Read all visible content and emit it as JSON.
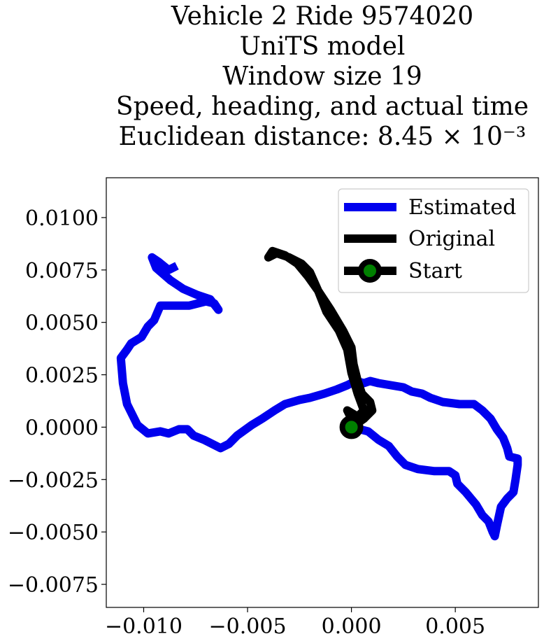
{
  "chart_data": {
    "type": "line",
    "title_lines": [
      "Vehicle 2 Ride 9574020",
      "UniTS model",
      "Window size 19",
      "Speed, heading, and actual time",
      "Euclidean distance: 8.45 × 10⁻³"
    ],
    "xlabel": "",
    "ylabel": "",
    "xlim": [
      -0.0118,
      0.009
    ],
    "ylim": [
      -0.0086,
      0.0119
    ],
    "x_ticks": [
      -0.01,
      -0.005,
      0.0,
      0.005
    ],
    "x_tick_labels": [
      "−0.010",
      "−0.005",
      "0.000",
      "0.005"
    ],
    "y_ticks": [
      0.01,
      0.0075,
      0.005,
      0.0025,
      0.0,
      -0.0025,
      -0.005,
      -0.0075
    ],
    "y_tick_labels": [
      "0.0100",
      "0.0075",
      "0.0050",
      "0.0025",
      "0.0000",
      "−0.0025",
      "−0.0050",
      "−0.0075"
    ],
    "grid": false,
    "legend_position": "top-right",
    "series": [
      {
        "name": "Estimated",
        "color": "#0000ee",
        "points": [
          [
            0.0,
            0.0
          ],
          [
            0.0008,
            -0.0002
          ],
          [
            0.0013,
            -0.0006
          ],
          [
            0.0018,
            -0.0009
          ],
          [
            0.0022,
            -0.0014
          ],
          [
            0.0026,
            -0.0018
          ],
          [
            0.0032,
            -0.002
          ],
          [
            0.004,
            -0.0021
          ],
          [
            0.0047,
            -0.0021
          ],
          [
            0.005,
            -0.0023
          ],
          [
            0.0051,
            -0.0027
          ],
          [
            0.0055,
            -0.0031
          ],
          [
            0.006,
            -0.0037
          ],
          [
            0.0063,
            -0.0042
          ],
          [
            0.0066,
            -0.0045
          ],
          [
            0.0068,
            -0.005
          ],
          [
            0.0069,
            -0.0052
          ],
          [
            0.007,
            -0.0047
          ],
          [
            0.0072,
            -0.0038
          ],
          [
            0.0075,
            -0.0034
          ],
          [
            0.0078,
            -0.0031
          ],
          [
            0.0079,
            -0.0025
          ],
          [
            0.008,
            -0.0018
          ],
          [
            0.008,
            -0.0015
          ],
          [
            0.0076,
            -0.0014
          ],
          [
            0.0075,
            -0.001
          ],
          [
            0.0073,
            -0.0005
          ],
          [
            0.007,
            -0.0001
          ],
          [
            0.0067,
            0.0004
          ],
          [
            0.0063,
            0.0008
          ],
          [
            0.0059,
            0.0011
          ],
          [
            0.0052,
            0.0011
          ],
          [
            0.0044,
            0.0012
          ],
          [
            0.0038,
            0.0014
          ],
          [
            0.0034,
            0.0016
          ],
          [
            0.0029,
            0.0017
          ],
          [
            0.0025,
            0.0019
          ],
          [
            0.0019,
            0.002
          ],
          [
            0.0013,
            0.0021
          ],
          [
            0.0009,
            0.0022
          ],
          [
            0.0006,
            0.0021
          ],
          [
            0.0002,
            0.0022
          ],
          [
            -0.0002,
            0.002
          ],
          [
            -0.0007,
            0.0018
          ],
          [
            -0.0013,
            0.0016
          ],
          [
            -0.002,
            0.0014
          ],
          [
            -0.0025,
            0.0013
          ],
          [
            -0.0032,
            0.0011
          ],
          [
            -0.0037,
            0.0008
          ],
          [
            -0.0043,
            0.0004
          ],
          [
            -0.0048,
            0.0001
          ],
          [
            -0.0055,
            -0.0004
          ],
          [
            -0.0059,
            -0.0008
          ],
          [
            -0.0063,
            -0.001
          ],
          [
            -0.0067,
            -0.0008
          ],
          [
            -0.0071,
            -0.0006
          ],
          [
            -0.0076,
            -0.0004
          ],
          [
            -0.0079,
            -0.0001
          ],
          [
            -0.0083,
            -0.0001
          ],
          [
            -0.0088,
            -0.0003
          ],
          [
            -0.0092,
            -0.0002
          ],
          [
            -0.0098,
            -0.0003
          ],
          [
            -0.0103,
            0.0001
          ],
          [
            -0.0108,
            0.0011
          ],
          [
            -0.011,
            0.0021
          ],
          [
            -0.0111,
            0.0033
          ],
          [
            -0.0108,
            0.0037
          ],
          [
            -0.0106,
            0.004
          ],
          [
            -0.0101,
            0.0043
          ],
          [
            -0.0098,
            0.0048
          ],
          [
            -0.0095,
            0.0051
          ],
          [
            -0.0092,
            0.0058
          ],
          [
            -0.0086,
            0.0058
          ],
          [
            -0.0078,
            0.0058
          ],
          [
            -0.007,
            0.006
          ],
          [
            -0.0066,
            0.0059
          ],
          [
            -0.0064,
            0.0056
          ],
          [
            -0.0068,
            0.0061
          ],
          [
            -0.0074,
            0.0063
          ],
          [
            -0.0081,
            0.0066
          ],
          [
            -0.0087,
            0.007
          ],
          [
            -0.0094,
            0.0076
          ],
          [
            -0.0096,
            0.0081
          ],
          [
            -0.0093,
            0.0079
          ],
          [
            -0.0088,
            0.0075
          ],
          [
            -0.0084,
            0.0077
          ]
        ]
      },
      {
        "name": "Original",
        "color": "#000000",
        "points": [
          [
            0.0,
            0.0
          ],
          [
            0.0006,
            0.0004
          ],
          [
            0.001,
            0.0008
          ],
          [
            0.0009,
            0.0012
          ],
          [
            0.0005,
            0.0016
          ],
          [
            0.0003,
            0.0022
          ],
          [
            0.0001,
            0.003
          ],
          [
            0.0,
            0.0038
          ],
          [
            -0.0004,
            0.0046
          ],
          [
            -0.001,
            0.0056
          ],
          [
            -0.0016,
            0.0065
          ],
          [
            -0.0021,
            0.0072
          ],
          [
            -0.0026,
            0.0078
          ],
          [
            -0.0032,
            0.0082
          ],
          [
            -0.0038,
            0.0084
          ],
          [
            -0.004,
            0.0081
          ],
          [
            -0.0036,
            0.0083
          ],
          [
            -0.003,
            0.0081
          ],
          [
            -0.0024,
            0.0078
          ],
          [
            -0.002,
            0.0074
          ],
          [
            -0.0016,
            0.0065
          ],
          [
            -0.0012,
            0.0055
          ],
          [
            -0.0006,
            0.0046
          ],
          [
            -0.0002,
            0.0037
          ],
          [
            0.0,
            0.0026
          ],
          [
            0.0003,
            0.0016
          ],
          [
            0.0006,
            0.0008
          ],
          [
            0.0003,
            0.0005
          ],
          [
            -0.0002,
            0.0008
          ],
          [
            0.0,
            0.0004
          ],
          [
            0.0001,
            0.0001
          ]
        ]
      },
      {
        "name": "Start",
        "color": "#000000",
        "marker_color": "#008000",
        "points": [
          [
            0.0,
            0.0
          ]
        ]
      }
    ]
  }
}
